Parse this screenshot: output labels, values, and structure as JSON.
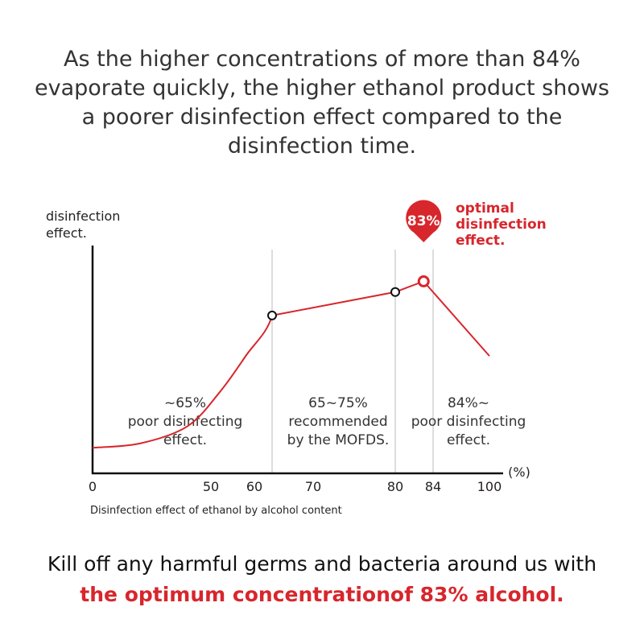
{
  "heading": {
    "lines": [
      "As the higher concentrations of more than 84%",
      "evaporate quickly,  the higher ethanol product shows",
      "a poorer disinfection effect compared to the",
      "disinfection time."
    ]
  },
  "footer": {
    "line1": "Kill off any harmful germs and bacteria around us with",
    "line2": "the optimum concentrationof 83% alcohol."
  },
  "colors": {
    "accent": "#d7262c",
    "axis": "#111111",
    "divider": "#bbbbbb"
  },
  "chart_data": {
    "type": "line",
    "title": "",
    "caption": "Disinfection effect of ethanol by alcohol content",
    "ylabel": [
      "disinfection",
      "effect."
    ],
    "xunit": "(%)",
    "xticks": [
      {
        "label": "0",
        "value": 0
      },
      {
        "label": "50",
        "value": 50
      },
      {
        "label": "60",
        "value": 60
      },
      {
        "label": "70",
        "value": 70
      },
      {
        "label": "80",
        "value": 80
      },
      {
        "label": "84",
        "value": 84
      },
      {
        "label": "100",
        "value": 100
      }
    ],
    "note": "x axis is not drawn to a linear scale",
    "dividers_at": [
      63,
      80,
      84
    ],
    "series": [
      {
        "curve": [
          {
            "x": 0,
            "y": 12
          },
          {
            "x": 20,
            "y": 14
          },
          {
            "x": 40,
            "y": 22
          },
          {
            "x": 52,
            "y": 38
          },
          {
            "x": 58,
            "y": 55
          },
          {
            "x": 63,
            "y": 74
          },
          {
            "x": 80,
            "y": 85
          },
          {
            "x": 83,
            "y": 90
          },
          {
            "x": 100,
            "y": 55
          }
        ],
        "markers": [
          {
            "x": 63,
            "y": 74,
            "kind": "open"
          },
          {
            "x": 80,
            "y": 85,
            "kind": "open"
          },
          {
            "x": 83,
            "y": 90,
            "kind": "optimal"
          }
        ]
      }
    ],
    "callout": {
      "value_label": "83%",
      "text": [
        "optimal",
        "disinfection",
        "effect."
      ]
    },
    "regions": [
      {
        "lines": [
          "~65%",
          "poor disinfecting",
          "effect."
        ]
      },
      {
        "lines": [
          "65~75%",
          "recommended",
          "by the MOFDS."
        ]
      },
      {
        "lines": [
          "84%~",
          "poor disinfecting",
          "effect."
        ]
      }
    ],
    "ylim": [
      0,
      100
    ]
  }
}
